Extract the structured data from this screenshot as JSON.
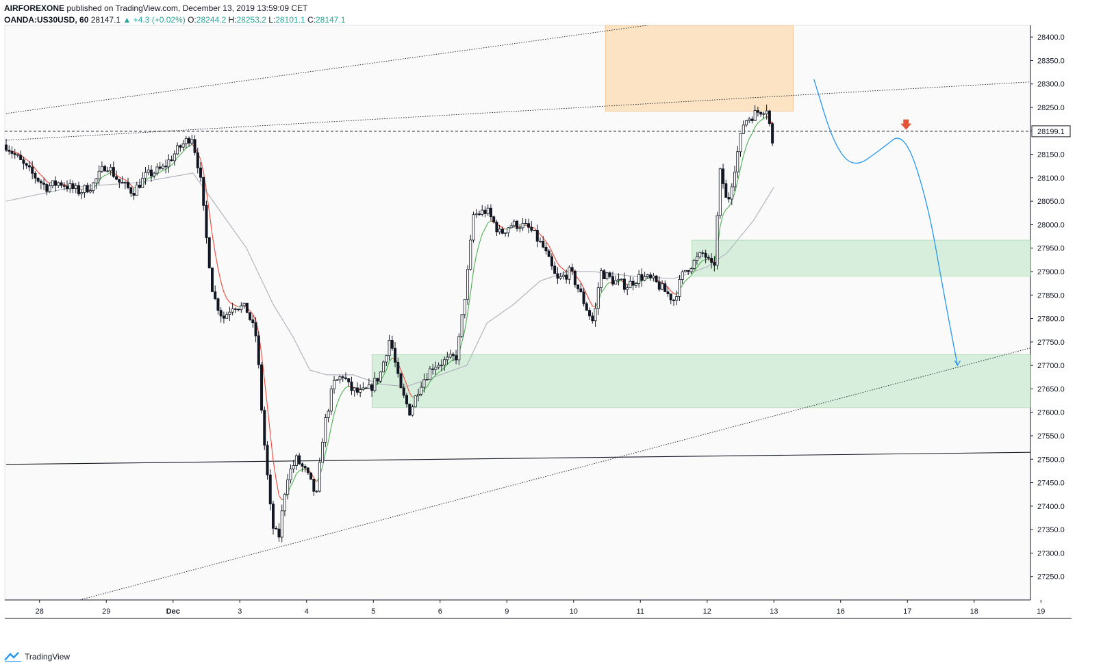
{
  "header": {
    "publisher": "AIRFOREXONE",
    "published_text": "published on TradingView.com, December 13, 2019 13:59:09 CET",
    "symbol": "OANDA:US30USD, 60",
    "last": "28147.1",
    "change": "+4.3 (+0.02%)",
    "o_label": "O:",
    "o_value": "28244.2",
    "h_label": "H:",
    "h_value": "28253.2",
    "l_label": "L:",
    "l_value": "28101.1",
    "c_label": "C:",
    "c_value": "28147.1",
    "up_arrow": "▲"
  },
  "brand": {
    "name": "TradingView",
    "icon": "tradingview-logo-icon"
  },
  "colors": {
    "candle": "#131722",
    "ma_fast_up": "#4caf50",
    "ma_fast_down": "#f44336",
    "ma_slow": "#b2b5be",
    "supply_zone": "#fbe3c4",
    "demand_zone": "#d8eedc",
    "projection": "#2196f3",
    "arrow_marker": "#e15539",
    "plot_bg": "#fafafa"
  },
  "chart_data": {
    "type": "candlestick",
    "symbol": "OANDA:US30USD",
    "interval": "60",
    "ylim": [
      27200,
      28425
    ],
    "y_ticks": [
      27250,
      27300,
      27350,
      27400,
      27450,
      27500,
      27550,
      27600,
      27650,
      27700,
      27750,
      27800,
      27850,
      27900,
      27950,
      28000,
      28050,
      28100,
      28150,
      28200,
      28250,
      28300,
      28350,
      28400
    ],
    "y_tick_labels": [
      "27250.0",
      "27300.0",
      "27350.0",
      "27400.0",
      "27450.0",
      "27500.0",
      "27550.0",
      "27600.0",
      "27650.0",
      "27700.0",
      "27750.0",
      "27800.0",
      "27850.0",
      "27900.0",
      "27950.0",
      "28000.0",
      "28050.0",
      "28100.0",
      "28150.0",
      "28200.0",
      "28250.0",
      "28300.0",
      "28350.0",
      "28400.0"
    ],
    "x_ticks": [
      {
        "t": 0.5,
        "label": "28",
        "bold": false
      },
      {
        "t": 1.5,
        "label": "29",
        "bold": false
      },
      {
        "t": 2.5,
        "label": "Dec",
        "bold": true
      },
      {
        "t": 3.5,
        "label": "3",
        "bold": false
      },
      {
        "t": 4.5,
        "label": "4",
        "bold": false
      },
      {
        "t": 5.5,
        "label": "5",
        "bold": false
      },
      {
        "t": 6.5,
        "label": "6",
        "bold": false
      },
      {
        "t": 7.5,
        "label": "9",
        "bold": false
      },
      {
        "t": 8.5,
        "label": "10",
        "bold": false
      },
      {
        "t": 9.5,
        "label": "11",
        "bold": false
      },
      {
        "t": 10.5,
        "label": "12",
        "bold": false
      },
      {
        "t": 11.5,
        "label": "13",
        "bold": false
      },
      {
        "t": 12.5,
        "label": "16",
        "bold": false
      },
      {
        "t": 13.5,
        "label": "17",
        "bold": false
      },
      {
        "t": 14.5,
        "label": "18",
        "bold": false
      },
      {
        "t": 15.5,
        "label": "19",
        "bold": false
      }
    ],
    "price_path": [
      [
        0.0,
        28170
      ],
      [
        0.3,
        28120
      ],
      [
        0.6,
        28080
      ],
      [
        0.8,
        28090
      ],
      [
        1.1,
        28070
      ],
      [
        1.3,
        28085
      ],
      [
        1.5,
        28130
      ],
      [
        1.7,
        28090
      ],
      [
        1.9,
        28070
      ],
      [
        2.1,
        28105
      ],
      [
        2.35,
        28120
      ],
      [
        2.6,
        28165
      ],
      [
        2.78,
        28190
      ],
      [
        2.9,
        28110
      ],
      [
        3.0,
        27970
      ],
      [
        3.1,
        27850
      ],
      [
        3.25,
        27800
      ],
      [
        3.4,
        27830
      ],
      [
        3.6,
        27820
      ],
      [
        3.75,
        27760
      ],
      [
        3.85,
        27560
      ],
      [
        3.98,
        27360
      ],
      [
        4.08,
        27330
      ],
      [
        4.2,
        27460
      ],
      [
        4.35,
        27500
      ],
      [
        4.5,
        27470
      ],
      [
        4.65,
        27420
      ],
      [
        4.75,
        27560
      ],
      [
        4.9,
        27660
      ],
      [
        5.05,
        27680
      ],
      [
        5.15,
        27650
      ],
      [
        5.3,
        27640
      ],
      [
        5.45,
        27650
      ],
      [
        5.6,
        27680
      ],
      [
        5.75,
        27760
      ],
      [
        5.9,
        27650
      ],
      [
        6.05,
        27600
      ],
      [
        6.2,
        27660
      ],
      [
        6.4,
        27700
      ],
      [
        6.6,
        27710
      ],
      [
        6.75,
        27720
      ],
      [
        6.9,
        27880
      ],
      [
        7.0,
        28020
      ],
      [
        7.2,
        28030
      ],
      [
        7.4,
        27980
      ],
      [
        7.55,
        28000
      ],
      [
        7.7,
        28000
      ],
      [
        7.85,
        27990
      ],
      [
        8.05,
        27950
      ],
      [
        8.25,
        27880
      ],
      [
        8.45,
        27900
      ],
      [
        8.55,
        27870
      ],
      [
        8.7,
        27820
      ],
      [
        8.8,
        27790
      ],
      [
        8.9,
        27900
      ],
      [
        9.1,
        27880
      ],
      [
        9.3,
        27870
      ],
      [
        9.5,
        27890
      ],
      [
        9.7,
        27880
      ],
      [
        9.85,
        27860
      ],
      [
        10.0,
        27840
      ],
      [
        10.15,
        27900
      ],
      [
        10.3,
        27920
      ],
      [
        10.45,
        27940
      ],
      [
        10.6,
        27900
      ],
      [
        10.7,
        28120
      ],
      [
        10.8,
        28040
      ],
      [
        10.95,
        28150
      ],
      [
        11.05,
        28220
      ],
      [
        11.25,
        28240
      ],
      [
        11.4,
        28250
      ],
      [
        11.5,
        28147
      ]
    ],
    "ma_slow": [
      [
        0.0,
        28050
      ],
      [
        1.0,
        28080
      ],
      [
        2.0,
        28090
      ],
      [
        2.8,
        28110
      ],
      [
        3.2,
        28030
      ],
      [
        3.6,
        27950
      ],
      [
        4.0,
        27830
      ],
      [
        4.3,
        27760
      ],
      [
        4.55,
        27690
      ],
      [
        4.8,
        27680
      ],
      [
        5.2,
        27680
      ],
      [
        5.6,
        27660
      ],
      [
        6.0,
        27655
      ],
      [
        6.5,
        27680
      ],
      [
        6.9,
        27700
      ],
      [
        7.2,
        27790
      ],
      [
        7.6,
        27830
      ],
      [
        8.0,
        27880
      ],
      [
        8.4,
        27900
      ],
      [
        8.8,
        27900
      ],
      [
        9.4,
        27890
      ],
      [
        10.0,
        27885
      ],
      [
        10.5,
        27910
      ],
      [
        10.8,
        27940
      ],
      [
        11.2,
        28010
      ],
      [
        11.5,
        28080
      ]
    ],
    "zones": [
      {
        "kind": "supply",
        "t0": 8.98,
        "t1": 11.79,
        "p_top": 28425,
        "p_bot": 28242
      },
      {
        "kind": "demand",
        "t0": 10.27,
        "t1": 15.55,
        "p_top": 27967,
        "p_bot": 27890
      },
      {
        "kind": "demand",
        "t0": 5.48,
        "t1": 15.55,
        "p_top": 27723,
        "p_bot": 27610
      }
    ],
    "trend_lines": [
      {
        "style": "dotted",
        "t0": 0.0,
        "p0": 28237,
        "t1": 10.62,
        "p1": 28445
      },
      {
        "style": "dotted",
        "t0": 0.0,
        "p0": 28180,
        "t1": 15.55,
        "p1": 28306
      },
      {
        "style": "dotted",
        "t0": 1.1,
        "p0": 27200,
        "t1": 15.55,
        "p1": 27745
      },
      {
        "style": "solid",
        "t0": 0.0,
        "p0": 27489,
        "t1": 15.55,
        "p1": 27515
      }
    ],
    "hline": {
      "price": 28199.1,
      "label": "28199.1"
    },
    "projection": [
      [
        12.1,
        28310
      ],
      [
        12.4,
        28170
      ],
      [
        12.7,
        28120
      ],
      [
        13.1,
        28160
      ],
      [
        13.45,
        28200
      ],
      [
        13.8,
        28050
      ],
      [
        14.05,
        27850
      ],
      [
        14.25,
        27700
      ]
    ],
    "arrow_marker": {
      "t": 13.48,
      "p": 28201
    }
  }
}
